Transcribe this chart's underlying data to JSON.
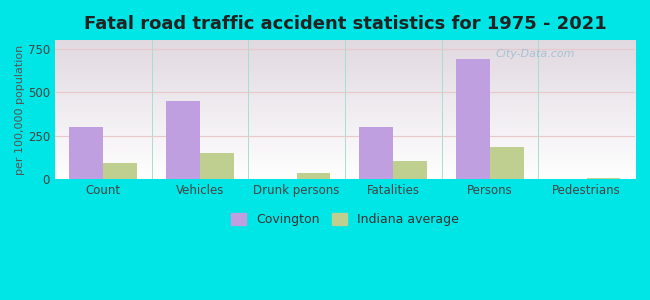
{
  "title": "Fatal road traffic accident statistics for 1975 - 2021",
  "ylabel": "per 100,000 population",
  "categories": [
    "Count",
    "Vehicles",
    "Drunk persons",
    "Fatalities",
    "Persons",
    "Pedestrians"
  ],
  "covington": [
    300,
    450,
    0,
    300,
    690,
    0
  ],
  "indiana_avg": [
    95,
    150,
    40,
    105,
    185,
    8
  ],
  "covington_color": "#bf9fdf",
  "indiana_color": "#bfcf8f",
  "background_color": "#00e5e5",
  "ylim": [
    0,
    800
  ],
  "yticks": [
    0,
    250,
    500,
    750
  ],
  "bar_width": 0.35,
  "title_fontsize": 13,
  "axis_label_fontsize": 8,
  "tick_fontsize": 8.5,
  "legend_labels": [
    "Covington",
    "Indiana average"
  ],
  "watermark": "City-Data.com"
}
